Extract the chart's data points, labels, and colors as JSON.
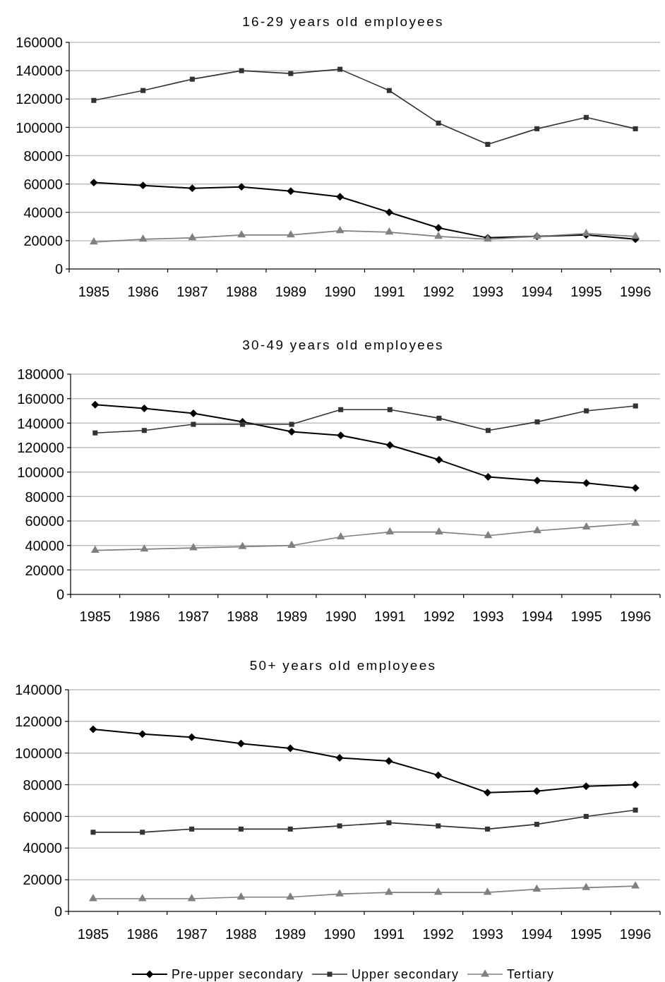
{
  "chart_data": [
    {
      "type": "line",
      "title": "16-29 years old employees",
      "categories": [
        "1985",
        "1986",
        "1987",
        "1988",
        "1989",
        "1990",
        "1991",
        "1992",
        "1993",
        "1994",
        "1995",
        "1996"
      ],
      "series": [
        {
          "color": "#000000",
          "marker": "diamond",
          "values": [
            61000,
            59000,
            57000,
            58000,
            55000,
            51000,
            40000,
            29000,
            22000,
            23000,
            24000,
            21000
          ]
        },
        {
          "color": "#333333",
          "marker": "square",
          "values": [
            119000,
            126000,
            134000,
            140000,
            138000,
            141000,
            126000,
            103000,
            88000,
            99000,
            107000,
            99000
          ]
        },
        {
          "color": "#808080",
          "marker": "triangle",
          "values": [
            19000,
            21000,
            22000,
            24000,
            24000,
            27000,
            26000,
            23000,
            21000,
            23000,
            25000,
            23000
          ]
        }
      ],
      "ylim": [
        0,
        160000
      ],
      "yticks": [
        0,
        20000,
        40000,
        60000,
        80000,
        100000,
        120000,
        140000,
        160000
      ],
      "grid": "y"
    },
    {
      "type": "line",
      "title": "30-49 years old employees",
      "categories": [
        "1985",
        "1986",
        "1987",
        "1988",
        "1989",
        "1990",
        "1991",
        "1992",
        "1993",
        "1994",
        "1995",
        "1996"
      ],
      "series": [
        {
          "color": "#000000",
          "marker": "diamond",
          "values": [
            155000,
            152000,
            148000,
            141000,
            133000,
            130000,
            122000,
            110000,
            96000,
            93000,
            91000,
            87000
          ]
        },
        {
          "color": "#333333",
          "marker": "square",
          "values": [
            132000,
            134000,
            139000,
            139000,
            139000,
            151000,
            151000,
            144000,
            134000,
            141000,
            150000,
            154000
          ]
        },
        {
          "color": "#808080",
          "marker": "triangle",
          "values": [
            36000,
            37000,
            38000,
            39000,
            40000,
            47000,
            51000,
            51000,
            48000,
            52000,
            55000,
            58000
          ]
        }
      ],
      "ylim": [
        0,
        180000
      ],
      "yticks": [
        0,
        20000,
        40000,
        60000,
        80000,
        100000,
        120000,
        140000,
        160000,
        180000
      ],
      "grid": "y"
    },
    {
      "type": "line",
      "title": "50+ years old employees",
      "categories": [
        "1985",
        "1986",
        "1987",
        "1988",
        "1989",
        "1990",
        "1991",
        "1992",
        "1993",
        "1994",
        "1995",
        "1996"
      ],
      "series": [
        {
          "name": "Pre-upper secondary",
          "color": "#000000",
          "marker": "diamond",
          "values": [
            115000,
            112000,
            110000,
            106000,
            103000,
            97000,
            95000,
            86000,
            75000,
            76000,
            79000,
            80000
          ]
        },
        {
          "name": "Upper secondary",
          "color": "#333333",
          "marker": "square",
          "values": [
            50000,
            50000,
            52000,
            52000,
            52000,
            54000,
            56000,
            54000,
            52000,
            55000,
            60000,
            64000
          ]
        },
        {
          "name": "Tertiary",
          "color": "#808080",
          "marker": "triangle",
          "values": [
            8000,
            8000,
            8000,
            9000,
            9000,
            11000,
            12000,
            12000,
            12000,
            14000,
            15000,
            16000
          ]
        }
      ],
      "ylim": [
        0,
        140000
      ],
      "yticks": [
        0,
        20000,
        40000,
        60000,
        80000,
        100000,
        120000,
        140000
      ],
      "grid": "y",
      "legend": "bottom"
    }
  ]
}
